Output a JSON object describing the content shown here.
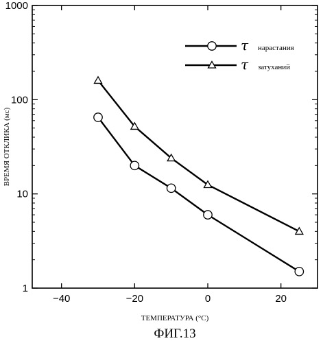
{
  "figure_caption": "ФИГ.13",
  "chart_data": {
    "type": "line",
    "xlabel": "ТЕМПЕРАТУРА (°C)",
    "ylabel": "ВРЕМЯ ОТКЛИКА (мс)",
    "xlim": [
      -48,
      30
    ],
    "ylim": [
      1,
      1000
    ],
    "yscale": "log",
    "x_ticks": [
      -40,
      -20,
      0,
      20
    ],
    "x_tick_labels": [
      "−40",
      "−20",
      "0",
      "20"
    ],
    "y_ticks": [
      1,
      10,
      100,
      1000
    ],
    "y_tick_labels": [
      "1",
      "10",
      "100",
      "1000"
    ],
    "grid": false,
    "legend_position": "top-right",
    "series": [
      {
        "name": "нарастания",
        "symbol": "τ",
        "marker": "circle",
        "color": "#000000",
        "x": [
          -30,
          -20,
          -10,
          0,
          25
        ],
        "y": [
          65,
          20,
          11.5,
          6,
          1.5
        ]
      },
      {
        "name": "затуханий",
        "symbol": "τ",
        "marker": "triangle",
        "color": "#000000",
        "x": [
          -30,
          -20,
          -10,
          0,
          25
        ],
        "y": [
          160,
          52,
          24,
          12.5,
          4
        ]
      }
    ]
  }
}
